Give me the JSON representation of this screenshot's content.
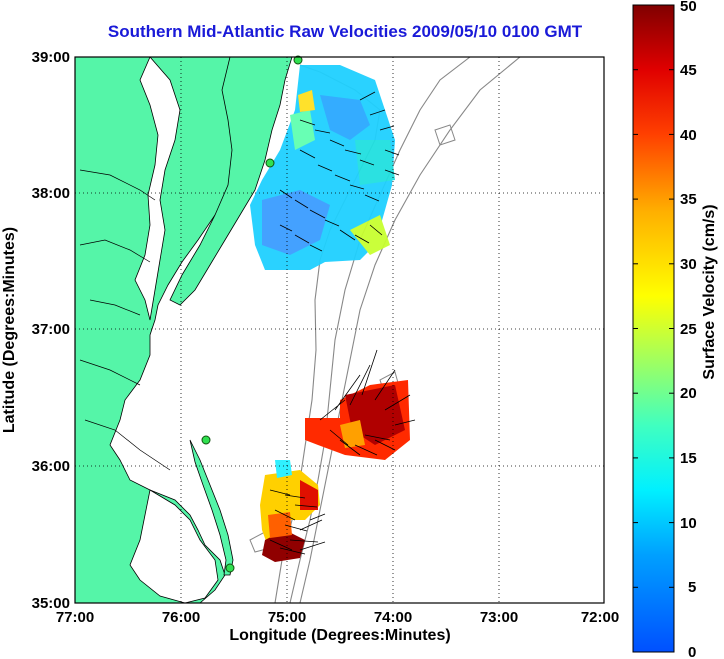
{
  "title": "Southern Mid-Atlantic Raw Velocities 2009/05/10 0100 GMT",
  "map": {
    "xlabel": "Longitude (Degrees:Minutes)",
    "ylabel": "Latitude (Degrees:Minutes)",
    "lon_ticks": [
      "77:00",
      "76:00",
      "75:00",
      "74:00",
      "73:00",
      "72:00"
    ],
    "lat_ticks": [
      "39:00",
      "38:00",
      "37:00",
      "36:00",
      "35:00"
    ],
    "lon_range": [
      -77,
      -72
    ],
    "lat_range": [
      35,
      39
    ],
    "land_color": "#55f5a8",
    "grid": "dotted"
  },
  "colorbar": {
    "label": "Surface Velocity (cm/s)",
    "ticks": [
      "50",
      "45",
      "40",
      "35",
      "30",
      "25",
      "20",
      "15",
      "10",
      "5",
      "0"
    ],
    "range": [
      0,
      50
    ]
  },
  "stations": [
    {
      "lon": -75.1,
      "lat": 38.97
    },
    {
      "lon": -75.16,
      "lat": 38.22
    },
    {
      "lon": -75.64,
      "lat": 36.18
    },
    {
      "lon": -75.47,
      "lat": 35.25
    }
  ]
}
